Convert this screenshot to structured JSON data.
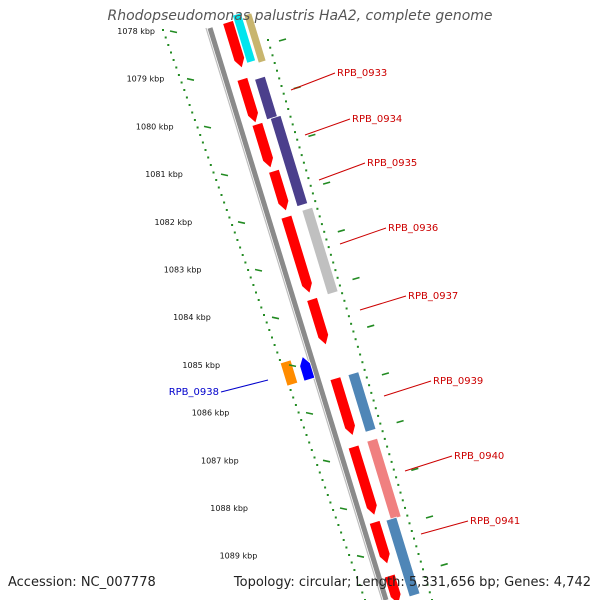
{
  "title": "Rhodopseudomonas palustris HaA2, complete genome",
  "footer": {
    "accession": "Accession: NC_007778",
    "topology": "Topology: circular; Length: 5,331,656 bp; Genes: 4,742"
  },
  "ruler": {
    "unit": "kbp",
    "ticks": [
      "1078 kbp",
      "1079 kbp",
      "1080 kbp",
      "1081 kbp",
      "1082 kbp",
      "1083 kbp",
      "1084 kbp",
      "1085 kbp",
      "1086 kbp",
      "1087 kbp",
      "1088 kbp",
      "1089 kbp"
    ]
  },
  "gene_labels": [
    {
      "name": "RPB_0933",
      "color": "#cc0000"
    },
    {
      "name": "RPB_0934",
      "color": "#cc0000"
    },
    {
      "name": "RPB_0935",
      "color": "#cc0000"
    },
    {
      "name": "RPB_0936",
      "color": "#cc0000"
    },
    {
      "name": "RPB_0937",
      "color": "#cc0000"
    },
    {
      "name": "RPB_0938",
      "color": "#0000cc"
    },
    {
      "name": "RPB_0939",
      "color": "#cc0000"
    },
    {
      "name": "RPB_0940",
      "color": "#cc0000"
    },
    {
      "name": "RPB_0941",
      "color": "#cc0000"
    }
  ],
  "colors": {
    "cds": "#ff0000",
    "reverse_cds": "#0000ff",
    "backbone": "#8a8a8a",
    "gc_skew": "#228b22",
    "cog_purple": "#4b3f8c",
    "cog_steelblue": "#4f86b7",
    "cog_gray": "#c0c0c0",
    "cog_pink": "#f08080",
    "cog_orange": "#ff8c00",
    "cog_cyan": "#00e5ee",
    "cog_khaki": "#c8b56e"
  }
}
